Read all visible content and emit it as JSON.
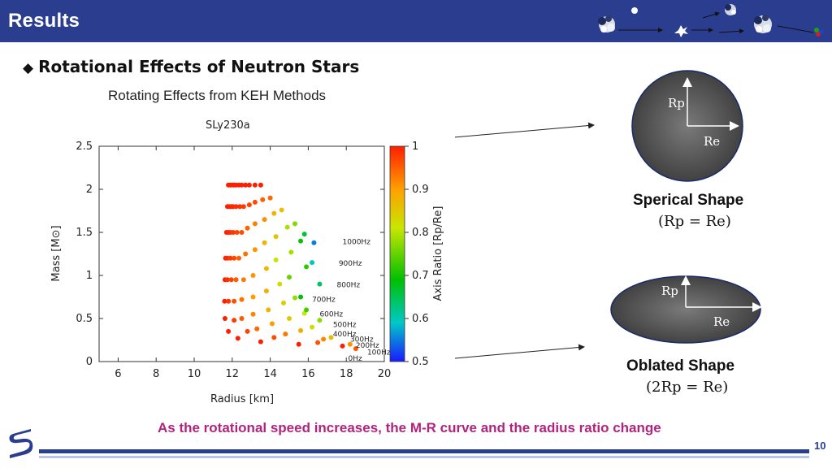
{
  "header": {
    "title": "Results",
    "colors": {
      "bar": "#2a3d8f",
      "title": "#ffffff"
    }
  },
  "section": {
    "bullet": "◆",
    "heading": "Rotational Effects of Neutron Stars",
    "subtitle": "Rotating Effects from KEH Methods"
  },
  "chart_data": {
    "type": "scatter",
    "title": "SLy230a",
    "xlabel": "Radius [km]",
    "ylabel": "Mass [M⊙]",
    "xlim": [
      5,
      20
    ],
    "ylim": [
      0,
      2.5
    ],
    "x_ticks": [
      6,
      8,
      10,
      12,
      14,
      16,
      18,
      20
    ],
    "y_ticks": [
      0,
      0.5,
      1,
      1.5,
      2,
      2.5
    ],
    "colorbar": {
      "label": "Axis Ratio [Rp/Re]",
      "range": [
        0.5,
        1
      ],
      "ticks": [
        0.5,
        0.6,
        0.7,
        0.8,
        0.9,
        1
      ]
    },
    "grid": false,
    "series": [
      {
        "name": "0Hz",
        "x": [
          11.8,
          11.75,
          11.7,
          11.65,
          11.62,
          11.6,
          11.62,
          11.8,
          12.3,
          13.5,
          15.5,
          17.8
        ],
        "y": [
          2.05,
          1.8,
          1.5,
          1.2,
          0.95,
          0.7,
          0.5,
          0.35,
          0.27,
          0.23,
          0.2,
          0.18
        ]
      },
      {
        "name": "100Hz",
        "x": [
          11.9,
          11.85,
          11.8,
          11.75,
          11.75,
          11.8,
          12.1,
          12.8,
          14.2,
          16.5,
          18.5
        ],
        "y": [
          2.05,
          1.8,
          1.5,
          1.2,
          0.95,
          0.7,
          0.48,
          0.35,
          0.28,
          0.22,
          0.15
        ]
      },
      {
        "name": "200Hz",
        "x": [
          12.0,
          11.95,
          11.9,
          11.9,
          11.95,
          12.1,
          12.5,
          13.3,
          14.8,
          16.8,
          18.2
        ],
        "y": [
          2.05,
          1.8,
          1.5,
          1.2,
          0.95,
          0.7,
          0.5,
          0.38,
          0.32,
          0.26,
          0.2
        ]
      },
      {
        "name": "300Hz",
        "x": [
          12.1,
          12.05,
          12.05,
          12.1,
          12.2,
          12.5,
          13.1,
          14.1,
          15.6,
          17.2
        ],
        "y": [
          2.05,
          1.8,
          1.5,
          1.2,
          0.95,
          0.72,
          0.55,
          0.44,
          0.36,
          0.28
        ]
      },
      {
        "name": "400Hz",
        "x": [
          12.2,
          12.2,
          12.25,
          12.35,
          12.6,
          13.1,
          13.9,
          15.0,
          16.2
        ],
        "y": [
          2.05,
          1.8,
          1.5,
          1.2,
          0.95,
          0.75,
          0.6,
          0.5,
          0.4
        ]
      },
      {
        "name": "500Hz",
        "x": [
          12.35,
          12.4,
          12.5,
          12.7,
          13.1,
          13.8,
          14.7,
          15.8,
          16.6
        ],
        "y": [
          2.05,
          1.8,
          1.5,
          1.25,
          1.0,
          0.82,
          0.68,
          0.56,
          0.48
        ]
      },
      {
        "name": "600Hz",
        "x": [
          12.5,
          12.6,
          12.8,
          13.2,
          13.8,
          14.5,
          15.3,
          15.9
        ],
        "y": [
          2.05,
          1.8,
          1.55,
          1.3,
          1.08,
          0.9,
          0.74,
          0.6
        ]
      },
      {
        "name": "700Hz",
        "x": [
          12.7,
          12.9,
          13.2,
          13.7,
          14.3,
          15.0,
          15.6
        ],
        "y": [
          2.05,
          1.82,
          1.6,
          1.38,
          1.18,
          0.98,
          0.75
        ]
      },
      {
        "name": "800Hz",
        "x": [
          12.9,
          13.2,
          13.7,
          14.3,
          15.1,
          15.9,
          16.6
        ],
        "y": [
          2.05,
          1.85,
          1.65,
          1.45,
          1.27,
          1.1,
          0.9
        ]
      },
      {
        "name": "900Hz",
        "x": [
          13.2,
          13.6,
          14.2,
          14.9,
          15.6,
          16.2
        ],
        "y": [
          2.05,
          1.88,
          1.72,
          1.56,
          1.4,
          1.15
        ]
      },
      {
        "name": "1000Hz",
        "x": [
          13.5,
          14.0,
          14.6,
          15.3,
          15.8,
          16.3
        ],
        "y": [
          2.05,
          1.9,
          1.76,
          1.6,
          1.48,
          1.38
        ]
      }
    ],
    "frequency_labels": [
      {
        "text": "1000Hz",
        "x": 17.8,
        "y": 1.39
      },
      {
        "text": "900Hz",
        "x": 17.6,
        "y": 1.14
      },
      {
        "text": "800Hz",
        "x": 17.5,
        "y": 0.89
      },
      {
        "text": "700Hz",
        "x": 16.2,
        "y": 0.72
      },
      {
        "text": "600Hz",
        "x": 16.6,
        "y": 0.55
      },
      {
        "text": "500Hz",
        "x": 17.3,
        "y": 0.43
      },
      {
        "text": "400Hz",
        "x": 17.3,
        "y": 0.32
      },
      {
        "text": "300Hz",
        "x": 18.2,
        "y": 0.26
      },
      {
        "text": "200Hz",
        "x": 18.5,
        "y": 0.19
      },
      {
        "text": "100Hz",
        "x": 19.1,
        "y": 0.11
      },
      {
        "text": "0Hz",
        "x": 18.1,
        "y": 0.04
      }
    ]
  },
  "shapes": {
    "spherical": {
      "label": "Sperical Shape",
      "formula": "(Rp = Re)",
      "rp_label": "Rp",
      "re_label": "Re"
    },
    "oblated": {
      "label": "Oblated Shape",
      "formula": "(2Rp = Re)",
      "rp_label": "Rp",
      "re_label": "Re"
    }
  },
  "conclusion": "As the rotational speed increases, the M-R curve and the radius ratio change",
  "footer": {
    "page_number": "10"
  },
  "colors": {
    "accent": "#2a3d8f",
    "conclusion": "#b0237f",
    "star_fill": "#555555"
  }
}
